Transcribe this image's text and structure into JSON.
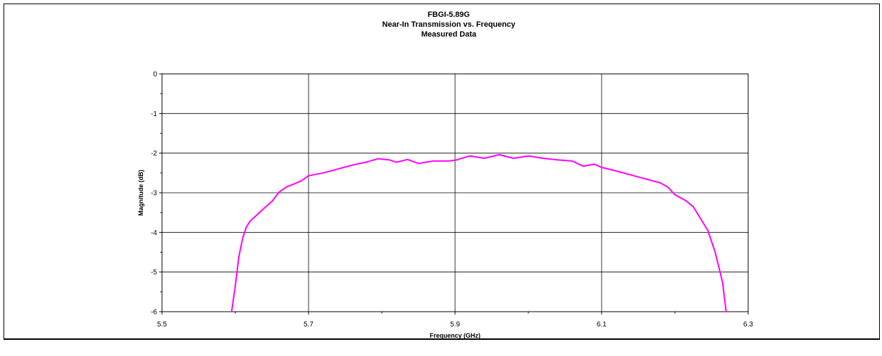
{
  "chart_data": {
    "type": "line",
    "title": [
      "FBGI-5.89G",
      "Near-In Transmission vs. Frequency",
      "Measured Data"
    ],
    "xlabel": "Frequency (GHz)",
    "ylabel": "Magnitude (dB)",
    "xlim": [
      5.5,
      6.3
    ],
    "ylim": [
      -6,
      0
    ],
    "xticks": [
      5.5,
      5.7,
      5.9,
      6.1,
      6.3
    ],
    "xtick_labels": [
      "5.5",
      "5.7",
      "5.9",
      "6.1",
      "6.3"
    ],
    "yticks": [
      0,
      -1,
      -2,
      -3,
      -4,
      -5,
      -6
    ],
    "ytick_labels": [
      "0",
      "-1",
      "-2",
      "-3",
      "-4",
      "-5",
      "-6"
    ],
    "grid": true,
    "legend": "none",
    "series": [
      {
        "color": "#ff00ff",
        "points": [
          [
            5.595,
            -6.0
          ],
          [
            5.6,
            -5.35
          ],
          [
            5.605,
            -4.6
          ],
          [
            5.61,
            -4.15
          ],
          [
            5.615,
            -3.87
          ],
          [
            5.62,
            -3.72
          ],
          [
            5.63,
            -3.55
          ],
          [
            5.64,
            -3.38
          ],
          [
            5.65,
            -3.22
          ],
          [
            5.66,
            -2.98
          ],
          [
            5.67,
            -2.85
          ],
          [
            5.68,
            -2.78
          ],
          [
            5.69,
            -2.7
          ],
          [
            5.7,
            -2.57
          ],
          [
            5.72,
            -2.5
          ],
          [
            5.74,
            -2.4
          ],
          [
            5.76,
            -2.3
          ],
          [
            5.78,
            -2.22
          ],
          [
            5.795,
            -2.14
          ],
          [
            5.81,
            -2.17
          ],
          [
            5.82,
            -2.23
          ],
          [
            5.835,
            -2.16
          ],
          [
            5.85,
            -2.26
          ],
          [
            5.87,
            -2.2
          ],
          [
            5.89,
            -2.2
          ],
          [
            5.9,
            -2.18
          ],
          [
            5.92,
            -2.07
          ],
          [
            5.94,
            -2.13
          ],
          [
            5.96,
            -2.04
          ],
          [
            5.98,
            -2.13
          ],
          [
            6.0,
            -2.07
          ],
          [
            6.02,
            -2.13
          ],
          [
            6.04,
            -2.17
          ],
          [
            6.06,
            -2.2
          ],
          [
            6.075,
            -2.33
          ],
          [
            6.09,
            -2.28
          ],
          [
            6.1,
            -2.36
          ],
          [
            6.12,
            -2.45
          ],
          [
            6.14,
            -2.55
          ],
          [
            6.16,
            -2.65
          ],
          [
            6.18,
            -2.75
          ],
          [
            6.19,
            -2.85
          ],
          [
            6.2,
            -3.05
          ],
          [
            6.215,
            -3.2
          ],
          [
            6.225,
            -3.35
          ],
          [
            6.235,
            -3.65
          ],
          [
            6.245,
            -3.95
          ],
          [
            6.255,
            -4.5
          ],
          [
            6.265,
            -5.25
          ],
          [
            6.27,
            -6.0
          ]
        ]
      }
    ]
  }
}
